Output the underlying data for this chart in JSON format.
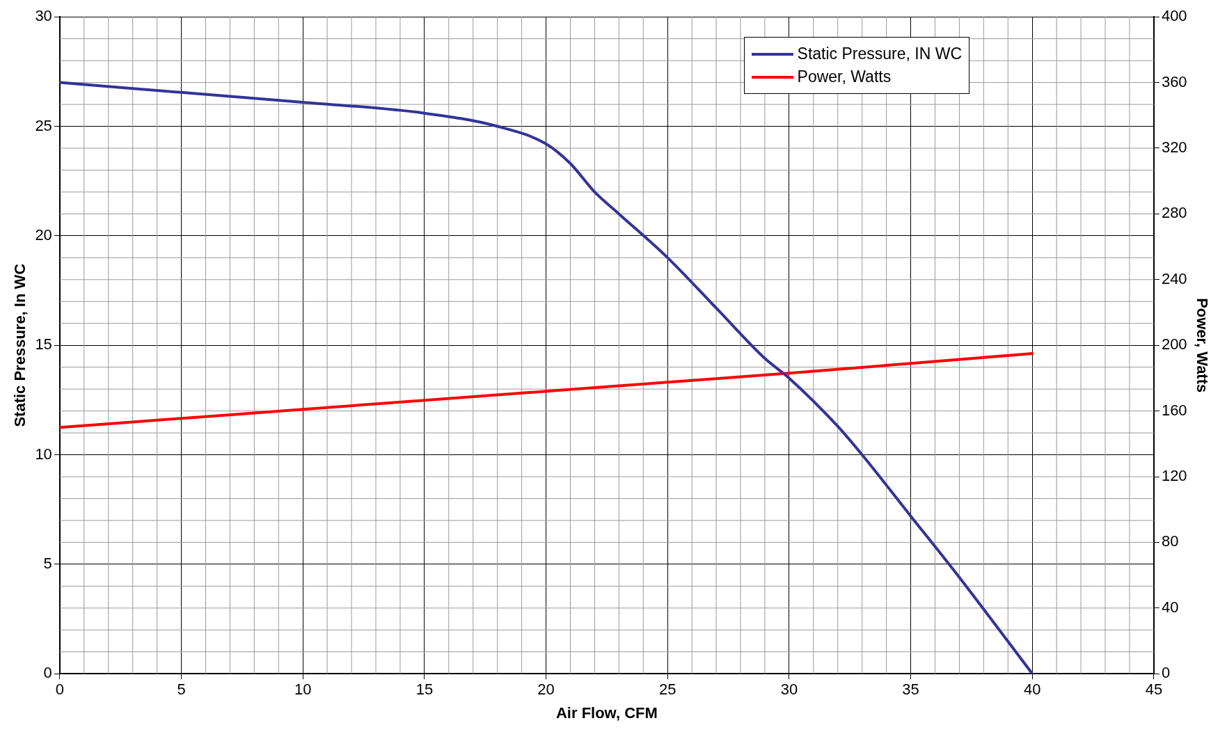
{
  "chart_data": {
    "type": "line",
    "xlabel": "Air Flow, CFM",
    "ylabel": "Static Pressure, In WC",
    "y2label": "Power, Watts",
    "series": [
      {
        "name": "Static Pressure, IN WC",
        "color": "#333399",
        "x": [
          0,
          5,
          10,
          15,
          18,
          20,
          21,
          22,
          23,
          25,
          27,
          29,
          30,
          32,
          33,
          35,
          37,
          40
        ],
        "values": [
          27,
          26.55,
          26.1,
          25.6,
          25,
          24.2,
          23.3,
          22,
          21,
          19,
          16.7,
          14.4,
          13.5,
          11.3,
          10,
          7.2,
          4.4,
          0
        ]
      },
      {
        "name": "Power, Watts",
        "color": "#ff0000",
        "axis": "y2",
        "x": [
          0,
          5,
          10,
          15,
          20,
          25,
          30,
          35,
          40
        ],
        "values": [
          150,
          155.5,
          161,
          166.5,
          172,
          177.5,
          183,
          189,
          195
        ]
      }
    ],
    "xlim": [
      0,
      45
    ],
    "xticks": [
      0,
      5,
      10,
      15,
      20,
      25,
      30,
      35,
      40,
      45
    ],
    "ylim": [
      0,
      30
    ],
    "yticks": [
      0,
      5,
      10,
      15,
      20,
      25,
      30
    ],
    "y2lim": [
      0,
      400
    ],
    "y2ticks": [
      0,
      40,
      80,
      120,
      160,
      200,
      240,
      280,
      320,
      360,
      400
    ],
    "grid": true,
    "legend": "top right",
    "marker": "none",
    "line_style": "solid"
  }
}
